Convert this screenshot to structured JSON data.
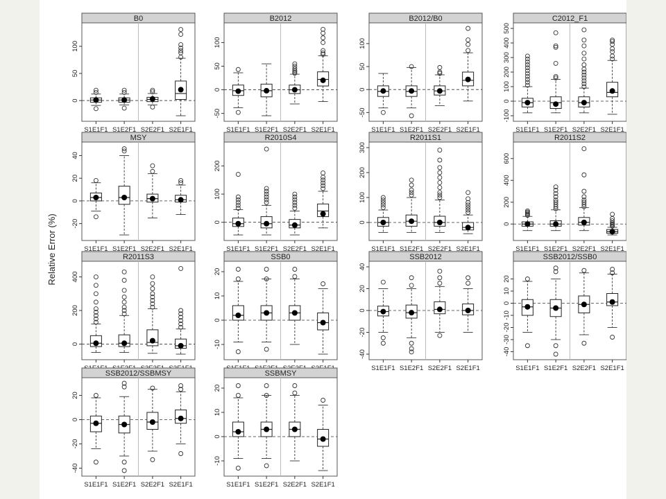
{
  "chart_data": {
    "type": "boxplot",
    "ylabel": "Relative Error (%)",
    "categories": [
      "S1E1F1",
      "S1E2F1",
      "S2E2F1",
      "S2E1F1"
    ],
    "panels": [
      {
        "title": "B0",
        "ylim": [
          -28,
          133
        ],
        "yticks": [
          0,
          50,
          100
        ],
        "boxes": [
          {
            "whislo": -9,
            "q1": -3,
            "med": 1,
            "q3": 5,
            "whishi": 12,
            "mean": 1,
            "outliers": [
              -15,
              15,
              19
            ]
          },
          {
            "whislo": -8,
            "q1": -3,
            "med": 1,
            "q3": 5,
            "whishi": 12,
            "mean": 1,
            "outliers": [
              -14,
              15,
              19
            ]
          },
          {
            "whislo": -8,
            "q1": -2,
            "med": 2,
            "q3": 6,
            "whishi": 13,
            "mean": 3,
            "outliers": [
              -12,
              16,
              19
            ]
          },
          {
            "whislo": -28,
            "q1": 2,
            "med": 13,
            "q3": 36,
            "whishi": 78,
            "mean": 20,
            "outliers": [
              80,
              88,
              92,
              97,
              103,
              122,
              131
            ]
          }
        ]
      },
      {
        "title": "B2012",
        "ylim": [
          -55,
          130
        ],
        "yticks": [
          -50,
          0,
          50,
          100
        ],
        "boxes": [
          {
            "whislo": -38,
            "q1": -12,
            "med": -2,
            "q3": 10,
            "whishi": 36,
            "mean": -3,
            "outliers": [
              -48,
              43
            ]
          },
          {
            "whislo": -55,
            "q1": -15,
            "med": -2,
            "q3": 12,
            "whishi": 55,
            "mean": -2,
            "outliers": []
          },
          {
            "whislo": -30,
            "q1": -8,
            "med": 0,
            "q3": 10,
            "whishi": 33,
            "mean": 0,
            "outliers": [
              35,
              38,
              41,
              45,
              50,
              55
            ]
          },
          {
            "whislo": -25,
            "q1": 8,
            "med": 22,
            "q3": 38,
            "whishi": 72,
            "mean": 20,
            "outliers": [
              75,
              78,
              83,
              100,
              110,
              120,
              128
            ]
          }
        ]
      },
      {
        "title": "B2012/B0",
        "ylim": [
          -57,
          133
        ],
        "yticks": [
          -50,
          0,
          50,
          100
        ],
        "boxes": [
          {
            "whislo": -40,
            "q1": -15,
            "med": -4,
            "q3": 8,
            "whishi": 35,
            "mean": -3,
            "outliers": [
              -50
            ]
          },
          {
            "whislo": -40,
            "q1": -15,
            "med": -4,
            "q3": 8,
            "whishi": 48,
            "mean": -3,
            "outliers": [
              -57,
              50
            ]
          },
          {
            "whislo": -35,
            "q1": -12,
            "med": -3,
            "q3": 8,
            "whishi": 32,
            "mean": -3,
            "outliers": [
              35,
              38,
              48
            ]
          },
          {
            "whislo": -25,
            "q1": 8,
            "med": 20,
            "q3": 38,
            "whishi": 80,
            "mean": 22,
            "outliers": [
              85,
              98,
              108,
              133
            ]
          }
        ]
      },
      {
        "title": "C2012_F1",
        "ylim": [
          -100,
          500
        ],
        "yticks": [
          -100,
          0,
          100,
          200,
          300,
          400,
          500
        ],
        "boxes": [
          {
            "whislo": -80,
            "q1": -40,
            "med": -10,
            "q3": 20,
            "whishi": 100,
            "mean": -10,
            "outliers": [
              110,
              130,
              150,
              170,
              190,
              210,
              230,
              250,
              270,
              290,
              310
            ]
          },
          {
            "whislo": -80,
            "q1": -50,
            "med": -10,
            "q3": 30,
            "whishi": 150,
            "mean": -20,
            "outliers": [
              160,
              170,
              260,
              370,
              380,
              470
            ]
          },
          {
            "whislo": -80,
            "q1": -40,
            "med": -10,
            "q3": 30,
            "whishi": 90,
            "mean": -10,
            "outliers": [
              100,
              120,
              140,
              160,
              180,
              200,
              220,
              250,
              290,
              330,
              380,
              420,
              490
            ]
          },
          {
            "whislo": -90,
            "q1": 30,
            "med": 60,
            "q3": 130,
            "whishi": 280,
            "mean": 70,
            "outliers": [
              290,
              310,
              340,
              360,
              390,
              410,
              420
            ]
          }
        ]
      },
      {
        "title": "MSY",
        "ylim": [
          -30,
          47
        ],
        "yticks": [
          -20,
          0,
          20,
          40
        ],
        "boxes": [
          {
            "whislo": -9,
            "q1": 0,
            "med": 3,
            "q3": 7,
            "whishi": 16,
            "mean": 3,
            "outliers": [
              -14,
              18
            ]
          },
          {
            "whislo": -30,
            "q1": -3,
            "med": 3,
            "q3": 13,
            "whishi": 40,
            "mean": 3,
            "outliers": [
              44,
              46
            ]
          },
          {
            "whislo": -15,
            "q1": -1,
            "med": 2,
            "q3": 6,
            "whishi": 24,
            "mean": 2,
            "outliers": [
              26,
              31
            ]
          },
          {
            "whislo": -12,
            "q1": -1,
            "med": 1,
            "q3": 5,
            "whishi": 14,
            "mean": 1,
            "outliers": [
              16,
              18
            ]
          }
        ]
      },
      {
        "title": "R2010S4",
        "ylim": [
          -45,
          265
        ],
        "yticks": [
          0,
          100,
          200
        ],
        "boxes": [
          {
            "whislo": -45,
            "q1": -15,
            "med": -5,
            "q3": 15,
            "whishi": 45,
            "mean": -5,
            "outliers": [
              50,
              60,
              70,
              80,
              90,
              170
            ]
          },
          {
            "whislo": -45,
            "q1": -20,
            "med": -5,
            "q3": 20,
            "whishi": 60,
            "mean": -5,
            "outliers": [
              70,
              80,
              90,
              100,
              110,
              120,
              260
            ]
          },
          {
            "whislo": -45,
            "q1": -20,
            "med": -10,
            "q3": 10,
            "whishi": 40,
            "mean": -10,
            "outliers": [
              50,
              60,
              70,
              80,
              90,
              100
            ]
          },
          {
            "whislo": -20,
            "q1": 20,
            "med": 40,
            "q3": 65,
            "whishi": 110,
            "mean": 30,
            "outliers": [
              120,
              130,
              140,
              150,
              160,
              175
            ]
          }
        ]
      },
      {
        "title": "R2011S1",
        "ylim": [
          -50,
          300
        ],
        "yticks": [
          0,
          100,
          200,
          300
        ],
        "boxes": [
          {
            "whislo": -40,
            "q1": -15,
            "med": 0,
            "q3": 20,
            "whishi": 50,
            "mean": 0,
            "outliers": [
              60,
              70,
              80,
              90,
              100
            ]
          },
          {
            "whislo": -40,
            "q1": -15,
            "med": 5,
            "q3": 30,
            "whishi": 100,
            "mean": 5,
            "outliers": [
              110,
              120,
              130,
              150,
              170
            ]
          },
          {
            "whislo": -40,
            "q1": -15,
            "med": 0,
            "q3": 25,
            "whishi": 90,
            "mean": 0,
            "outliers": [
              100,
              110,
              120,
              140,
              160,
              180,
              200,
              220,
              250,
              290
            ]
          },
          {
            "whislo": -45,
            "q1": -30,
            "med": -20,
            "q3": 0,
            "whishi": 30,
            "mean": -20,
            "outliers": [
              40,
              50,
              60,
              70,
              80,
              95,
              120
            ]
          }
        ]
      },
      {
        "title": "R2011S2",
        "ylim": [
          -100,
          700
        ],
        "yticks": [
          0,
          200,
          400,
          600
        ],
        "boxes": [
          {
            "whislo": -60,
            "q1": -20,
            "med": 0,
            "q3": 20,
            "whishi": 70,
            "mean": 0,
            "outliers": [
              80,
              90,
              100,
              110,
              120
            ]
          },
          {
            "whislo": -60,
            "q1": -20,
            "med": 0,
            "q3": 30,
            "whishi": 130,
            "mean": 0,
            "outliers": [
              140,
              160,
              180,
              200,
              220,
              250,
              280,
              310,
              340
            ]
          },
          {
            "whislo": -60,
            "q1": -10,
            "med": 15,
            "q3": 60,
            "whishi": 150,
            "mean": 15,
            "outliers": [
              160,
              180,
              200,
              220,
              250,
              300,
              450,
              690
            ]
          },
          {
            "whislo": -100,
            "q1": -85,
            "med": -70,
            "q3": -50,
            "whishi": -30,
            "mean": -70,
            "outliers": [
              -20,
              -10,
              0,
              10,
              30,
              50,
              90
            ]
          }
        ]
      },
      {
        "title": "R2011S3",
        "ylim": [
          -60,
          460
        ],
        "yticks": [
          0,
          200,
          400
        ],
        "boxes": [
          {
            "whislo": -50,
            "q1": -15,
            "med": 5,
            "q3": 50,
            "whishi": 120,
            "mean": 5,
            "outliers": [
              130,
              150,
              170,
              190,
              210,
              250,
              300,
              350,
              400
            ]
          },
          {
            "whislo": -50,
            "q1": -15,
            "med": 5,
            "q3": 55,
            "whishi": 170,
            "mean": 5,
            "outliers": [
              180,
              200,
              220,
              250,
              280,
              320,
              380,
              430
            ]
          },
          {
            "whislo": -55,
            "q1": -10,
            "med": 10,
            "q3": 85,
            "whishi": 210,
            "mean": 20,
            "outliers": [
              220,
              240,
              260,
              280,
              300,
              330,
              360,
              400
            ]
          },
          {
            "whislo": -60,
            "q1": -25,
            "med": -10,
            "q3": 30,
            "whishi": 90,
            "mean": -10,
            "outliers": [
              100,
              120,
              140,
              160,
              180,
              200,
              450
            ]
          }
        ]
      },
      {
        "title": "SSB0",
        "ylim": [
          -14,
          22
        ],
        "yticks": [
          -10,
          0,
          10,
          20
        ],
        "boxes": [
          {
            "whislo": -9,
            "q1": 0,
            "med": 2,
            "q3": 6,
            "whishi": 16,
            "mean": 2,
            "outliers": [
              -13,
              17,
              21
            ]
          },
          {
            "whislo": -9,
            "q1": 0,
            "med": 3,
            "q3": 6,
            "whishi": 17,
            "mean": 3,
            "outliers": [
              -12,
              17,
              21
            ]
          },
          {
            "whislo": -10,
            "q1": 0,
            "med": 3,
            "q3": 6,
            "whishi": 17,
            "mean": 3,
            "outliers": [
              18,
              21
            ]
          },
          {
            "whislo": -14,
            "q1": -4,
            "med": -1,
            "q3": 3,
            "whishi": 13,
            "mean": -1,
            "outliers": [
              15
            ]
          }
        ]
      },
      {
        "title": "SSB2012",
        "ylim": [
          -40,
          40
        ],
        "yticks": [
          -40,
          -20,
          0,
          20,
          40
        ],
        "boxes": [
          {
            "whislo": -20,
            "q1": -5,
            "med": -1,
            "q3": 4,
            "whishi": 20,
            "mean": -1,
            "outliers": [
              -25,
              -30,
              26
            ]
          },
          {
            "whislo": -25,
            "q1": -7,
            "med": -2,
            "q3": 5,
            "whishi": 20,
            "mean": -2,
            "outliers": [
              -30,
              -35,
              -38,
              23,
              30
            ]
          },
          {
            "whislo": -20,
            "q1": -3,
            "med": 1,
            "q3": 8,
            "whishi": 22,
            "mean": 1,
            "outliers": [
              -23,
              25,
              30,
              36
            ]
          },
          {
            "whislo": -20,
            "q1": -4,
            "med": 0,
            "q3": 6,
            "whishi": 20,
            "mean": 0,
            "outliers": [
              25,
              30
            ]
          }
        ]
      },
      {
        "title": "SSB2012/SSB0",
        "ylim": [
          -42,
          30
        ],
        "yticks": [
          -40,
          -30,
          -20,
          -10,
          0,
          10,
          20
        ],
        "boxes": [
          {
            "whislo": -24,
            "q1": -10,
            "med": -3,
            "q3": 3,
            "whishi": 18,
            "mean": -3,
            "outliers": [
              -35,
              20
            ]
          },
          {
            "whislo": -30,
            "q1": -11,
            "med": -4,
            "q3": 3,
            "whishi": 20,
            "mean": -4,
            "outliers": [
              -35,
              -42,
              26,
              29
            ]
          },
          {
            "whislo": -26,
            "q1": -8,
            "med": -1,
            "q3": 6,
            "whishi": 25,
            "mean": -1,
            "outliers": [
              -33,
              27
            ]
          },
          {
            "whislo": -20,
            "q1": -2,
            "med": 1,
            "q3": 8,
            "whishi": 24,
            "mean": 1,
            "outliers": [
              -28,
              25,
              28
            ]
          }
        ]
      },
      {
        "title": "SSB2012/SSBMSY",
        "ylim": [
          -42,
          30
        ],
        "yticks": [
          -40,
          -20,
          0,
          20
        ],
        "boxes": [
          {
            "whislo": -24,
            "q1": -10,
            "med": -3,
            "q3": 3,
            "whishi": 18,
            "mean": -3,
            "outliers": [
              -35,
              20
            ]
          },
          {
            "whislo": -30,
            "q1": -11,
            "med": -4,
            "q3": 3,
            "whishi": 19,
            "mean": -4,
            "outliers": [
              -35,
              -42,
              27,
              30
            ]
          },
          {
            "whislo": -26,
            "q1": -8,
            "med": -2,
            "q3": 6,
            "whishi": 25,
            "mean": -2,
            "outliers": [
              -33,
              26
            ]
          },
          {
            "whislo": -20,
            "q1": -3,
            "med": 1,
            "q3": 8,
            "whishi": 23,
            "mean": 1,
            "outliers": [
              -28,
              25,
              28
            ]
          }
        ]
      },
      {
        "title": "SSBMSY",
        "ylim": [
          -14,
          22
        ],
        "yticks": [
          -10,
          0,
          10,
          20
        ],
        "boxes": [
          {
            "whislo": -9,
            "q1": 0,
            "med": 2,
            "q3": 6,
            "whishi": 16,
            "mean": 2,
            "outliers": [
              -13,
              17,
              21
            ]
          },
          {
            "whislo": -9,
            "q1": 0,
            "med": 3,
            "q3": 6,
            "whishi": 17,
            "mean": 3,
            "outliers": [
              -12,
              17,
              21
            ]
          },
          {
            "whislo": -10,
            "q1": 0,
            "med": 3,
            "q3": 6,
            "whishi": 17,
            "mean": 3,
            "outliers": [
              18,
              21
            ]
          },
          {
            "whislo": -14,
            "q1": -4,
            "med": -1,
            "q3": 3,
            "whishi": 13,
            "mean": -1,
            "outliers": [
              15
            ]
          }
        ]
      }
    ]
  }
}
